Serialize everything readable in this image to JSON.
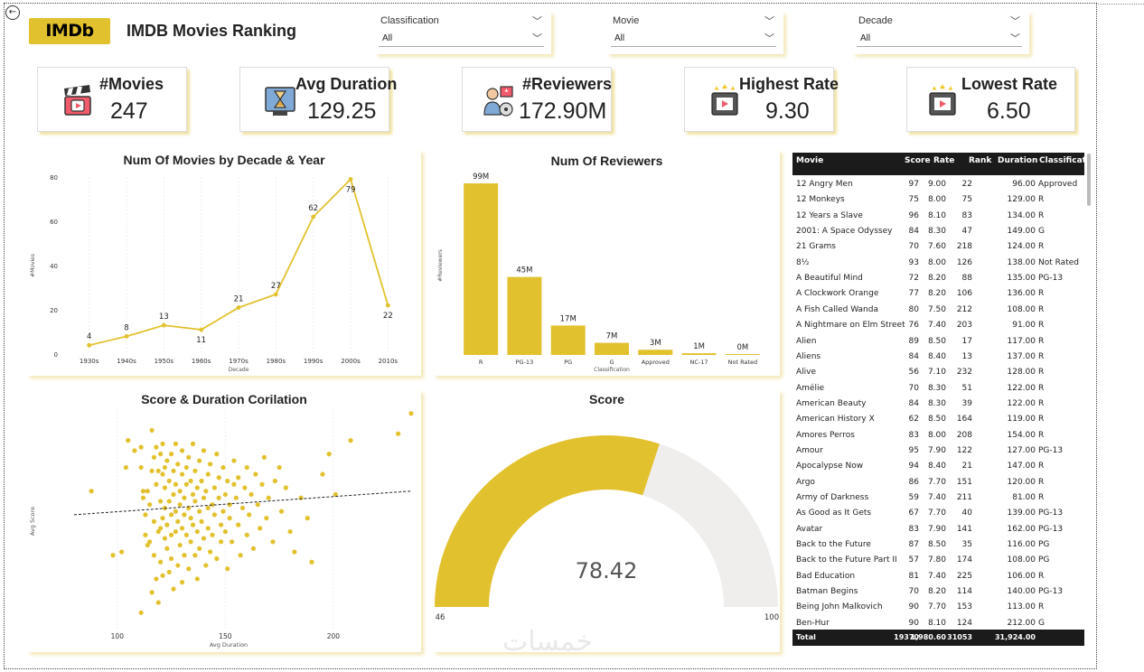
{
  "header": {
    "logo_text": "IMDb",
    "title": "IMDB Movies Ranking"
  },
  "slicers": [
    {
      "label": "Classification",
      "value": "All"
    },
    {
      "label": "Movie",
      "value": "All"
    },
    {
      "label": "Decade",
      "value": "All"
    }
  ],
  "kpis": [
    {
      "label": "#Movies",
      "value": "247",
      "icon": "clapperboard-icon"
    },
    {
      "label": "Avg Duration",
      "value": "129.25",
      "icon": "hourglass-screen-icon"
    },
    {
      "label": "#Reviewers",
      "value": "172.90M",
      "icon": "reviewer-icon"
    },
    {
      "label": "Highest Rate",
      "value": "9.30",
      "icon": "rated-movie-icon"
    },
    {
      "label": "Lowest Rate",
      "value": "6.50",
      "icon": "rated-movie-icon"
    }
  ],
  "colors": {
    "accent": "#e2c12f",
    "header_dark": "#1b1b1b",
    "gauge_empty": "#efeeed"
  },
  "chart_data": [
    {
      "type": "line",
      "title": "Num Of Movies by Decade & Year",
      "xlabel": "Decade",
      "ylabel": "#Movies",
      "categories": [
        "1930s",
        "1940s",
        "1950s",
        "1960s",
        "1970s",
        "1980s",
        "1990s",
        "2000s",
        "2010s"
      ],
      "values": [
        4,
        8,
        13,
        11,
        21,
        27,
        62,
        79,
        22
      ],
      "data_labels": [
        "4",
        "8",
        "13",
        "11",
        "21",
        "27",
        "62",
        "79",
        "22"
      ],
      "ylim": [
        0,
        80
      ],
      "yticks": [
        "0",
        "20",
        "40",
        "60",
        "80"
      ]
    },
    {
      "type": "bar",
      "title": "Num Of Reviewers",
      "xlabel": "Classification",
      "ylabel": "#Reviewers",
      "categories": [
        "R",
        "PG-13",
        "PG",
        "G",
        "Approved",
        "NC-17",
        "Not Rated"
      ],
      "values": [
        99,
        45,
        17,
        7,
        3,
        1,
        0.2
      ],
      "data_labels": [
        "99M",
        "45M",
        "17M",
        "7M",
        "3M",
        "1M",
        "0M"
      ]
    },
    {
      "type": "scatter",
      "title": "Score & Duration Corilation",
      "xlabel": "Avg Duration",
      "ylabel": "Avg Score",
      "xticks": [
        "100",
        "150",
        "200"
      ],
      "xlim": [
        80,
        236
      ],
      "ylim": [
        40,
        105
      ],
      "trendline": [
        [
          80,
          74
        ],
        [
          236,
          81
        ]
      ],
      "points": [
        [
          88,
          81
        ],
        [
          98,
          62
        ],
        [
          102,
          63
        ],
        [
          104,
          88
        ],
        [
          105,
          96
        ],
        [
          108,
          93
        ],
        [
          111,
          45
        ],
        [
          111,
          94
        ],
        [
          111,
          88
        ],
        [
          112,
          81
        ],
        [
          112,
          79
        ],
        [
          113,
          68
        ],
        [
          113,
          74
        ],
        [
          114,
          65
        ],
        [
          114,
          81
        ],
        [
          115,
          77
        ],
        [
          115,
          66
        ],
        [
          116,
          99
        ],
        [
          116,
          87
        ],
        [
          116,
          51
        ],
        [
          117,
          72
        ],
        [
          117,
          62
        ],
        [
          117,
          91
        ],
        [
          118,
          83
        ],
        [
          118,
          55
        ],
        [
          118,
          94
        ],
        [
          119,
          87
        ],
        [
          119,
          69
        ],
        [
          119,
          48
        ],
        [
          120,
          92
        ],
        [
          120,
          78
        ],
        [
          120,
          70
        ],
        [
          120,
          60
        ],
        [
          121,
          86
        ],
        [
          121,
          73
        ],
        [
          121,
          56
        ],
        [
          121,
          95
        ],
        [
          122,
          67
        ],
        [
          122,
          82
        ],
        [
          122,
          76
        ],
        [
          122,
          88
        ],
        [
          123,
          71
        ],
        [
          123,
          64
        ],
        [
          123,
          90
        ],
        [
          124,
          84
        ],
        [
          124,
          57
        ],
        [
          124,
          78
        ],
        [
          125,
          74
        ],
        [
          125,
          68
        ],
        [
          125,
          92
        ],
        [
          125,
          61
        ],
        [
          126,
          80
        ],
        [
          126,
          87
        ],
        [
          126,
          52
        ],
        [
          127,
          95
        ],
        [
          127,
          75
        ],
        [
          127,
          69
        ],
        [
          127,
          83
        ],
        [
          128,
          72
        ],
        [
          128,
          59
        ],
        [
          128,
          89
        ],
        [
          129,
          81
        ],
        [
          129,
          77
        ],
        [
          129,
          65
        ],
        [
          130,
          86
        ],
        [
          130,
          70
        ],
        [
          130,
          93
        ],
        [
          130,
          54
        ],
        [
          131,
          79
        ],
        [
          131,
          74
        ],
        [
          131,
          62
        ],
        [
          132,
          88
        ],
        [
          132,
          83
        ],
        [
          132,
          68
        ],
        [
          133,
          76
        ],
        [
          133,
          91
        ],
        [
          133,
          58
        ],
        [
          134,
          73
        ],
        [
          134,
          84
        ],
        [
          134,
          66
        ],
        [
          135,
          80
        ],
        [
          135,
          71
        ],
        [
          135,
          95
        ],
        [
          136,
          78
        ],
        [
          136,
          62
        ],
        [
          136,
          87
        ],
        [
          137,
          69
        ],
        [
          137,
          82
        ],
        [
          137,
          55
        ],
        [
          138,
          75
        ],
        [
          138,
          90
        ],
        [
          138,
          64
        ],
        [
          139,
          84
        ],
        [
          139,
          72
        ],
        [
          140,
          79
        ],
        [
          140,
          67
        ],
        [
          140,
          93
        ],
        [
          141,
          81
        ],
        [
          141,
          59
        ],
        [
          142,
          76
        ],
        [
          142,
          86
        ],
        [
          142,
          70
        ],
        [
          143,
          63
        ],
        [
          143,
          89
        ],
        [
          144,
          77
        ],
        [
          144,
          68
        ],
        [
          145,
          82
        ],
        [
          145,
          74
        ],
        [
          146,
          92
        ],
        [
          146,
          61
        ],
        [
          147,
          79
        ],
        [
          147,
          85
        ],
        [
          148,
          71
        ],
        [
          148,
          66
        ],
        [
          149,
          88
        ],
        [
          149,
          75
        ],
        [
          150,
          80
        ],
        [
          150,
          69
        ],
        [
          151,
          84
        ],
        [
          151,
          58
        ],
        [
          152,
          77
        ],
        [
          152,
          73
        ],
        [
          153,
          66
        ],
        [
          154,
          83
        ],
        [
          154,
          90
        ],
        [
          155,
          79
        ],
        [
          156,
          71
        ],
        [
          156,
          85
        ],
        [
          157,
          62
        ],
        [
          158,
          76
        ],
        [
          159,
          82
        ],
        [
          160,
          68
        ],
        [
          160,
          88
        ],
        [
          161,
          74
        ],
        [
          162,
          80
        ],
        [
          163,
          64
        ],
        [
          164,
          86
        ],
        [
          165,
          77
        ],
        [
          166,
          70
        ],
        [
          167,
          83
        ],
        [
          168,
          91
        ],
        [
          169,
          73
        ],
        [
          170,
          79
        ],
        [
          172,
          66
        ],
        [
          173,
          84
        ],
        [
          175,
          88
        ],
        [
          176,
          75
        ],
        [
          178,
          82
        ],
        [
          180,
          69
        ],
        [
          182,
          63
        ],
        [
          185,
          79
        ],
        [
          188,
          73
        ],
        [
          190,
          60
        ],
        [
          195,
          86
        ],
        [
          198,
          92
        ],
        [
          201,
          80
        ],
        [
          208,
          96
        ],
        [
          230,
          98
        ],
        [
          236,
          104
        ]
      ]
    },
    {
      "type": "gauge",
      "title": "Score",
      "value": 78.42,
      "value_label": "78.42",
      "min": 46,
      "max": 100,
      "min_label": "46",
      "max_label": "100"
    },
    {
      "type": "table",
      "columns": [
        "Movie",
        "Score",
        "Rate",
        "Rank",
        "Duration",
        "Classification"
      ],
      "rows": [
        [
          "12 Angry Men",
          "97",
          "9.00",
          "22",
          "96.00",
          "Approved"
        ],
        [
          "12 Monkeys",
          "75",
          "8.00",
          "75",
          "129.00",
          "R"
        ],
        [
          "12 Years a Slave",
          "96",
          "8.10",
          "83",
          "134.00",
          "R"
        ],
        [
          "2001: A Space Odyssey",
          "84",
          "8.30",
          "47",
          "149.00",
          "G"
        ],
        [
          "21 Grams",
          "70",
          "7.60",
          "218",
          "124.00",
          "R"
        ],
        [
          "8½",
          "93",
          "8.00",
          "126",
          "138.00",
          "Not Rated"
        ],
        [
          "A Beautiful Mind",
          "72",
          "8.20",
          "88",
          "135.00",
          "PG-13"
        ],
        [
          "A Clockwork Orange",
          "77",
          "8.20",
          "106",
          "136.00",
          "R"
        ],
        [
          "A Fish Called Wanda",
          "80",
          "7.50",
          "212",
          "108.00",
          "R"
        ],
        [
          "A Nightmare on Elm Street",
          "76",
          "7.40",
          "203",
          "91.00",
          "R"
        ],
        [
          "Alien",
          "89",
          "8.50",
          "17",
          "117.00",
          "R"
        ],
        [
          "Aliens",
          "84",
          "8.40",
          "13",
          "137.00",
          "R"
        ],
        [
          "Alive",
          "56",
          "7.10",
          "232",
          "128.00",
          "R"
        ],
        [
          "Amélie",
          "70",
          "8.30",
          "51",
          "122.00",
          "R"
        ],
        [
          "American Beauty",
          "84",
          "8.30",
          "39",
          "122.00",
          "R"
        ],
        [
          "American History X",
          "62",
          "8.50",
          "164",
          "119.00",
          "R"
        ],
        [
          "Amores Perros",
          "83",
          "8.00",
          "208",
          "154.00",
          "R"
        ],
        [
          "Amour",
          "95",
          "7.90",
          "122",
          "127.00",
          "PG-13"
        ],
        [
          "Apocalypse Now",
          "94",
          "8.40",
          "21",
          "147.00",
          "R"
        ],
        [
          "Argo",
          "86",
          "7.70",
          "151",
          "120.00",
          "R"
        ],
        [
          "Army of Darkness",
          "59",
          "7.40",
          "211",
          "81.00",
          "R"
        ],
        [
          "As Good as It Gets",
          "67",
          "7.70",
          "40",
          "139.00",
          "PG-13"
        ],
        [
          "Avatar",
          "83",
          "7.90",
          "141",
          "162.00",
          "PG-13"
        ],
        [
          "Back to the Future",
          "87",
          "8.50",
          "35",
          "116.00",
          "PG"
        ],
        [
          "Back to the Future Part II",
          "57",
          "7.80",
          "174",
          "108.00",
          "PG"
        ],
        [
          "Bad Education",
          "81",
          "7.40",
          "225",
          "106.00",
          "R"
        ],
        [
          "Batman Begins",
          "70",
          "8.20",
          "114",
          "140.00",
          "PG-13"
        ],
        [
          "Being John Malkovich",
          "90",
          "7.70",
          "153",
          "113.00",
          "R"
        ],
        [
          "Ben-Hur",
          "90",
          "8.10",
          "124",
          "212.00",
          "G"
        ]
      ],
      "total": [
        "Total",
        "19370",
        "1,980.60",
        "31053",
        "31,924.00",
        ""
      ]
    }
  ],
  "watermark": "خمسات"
}
